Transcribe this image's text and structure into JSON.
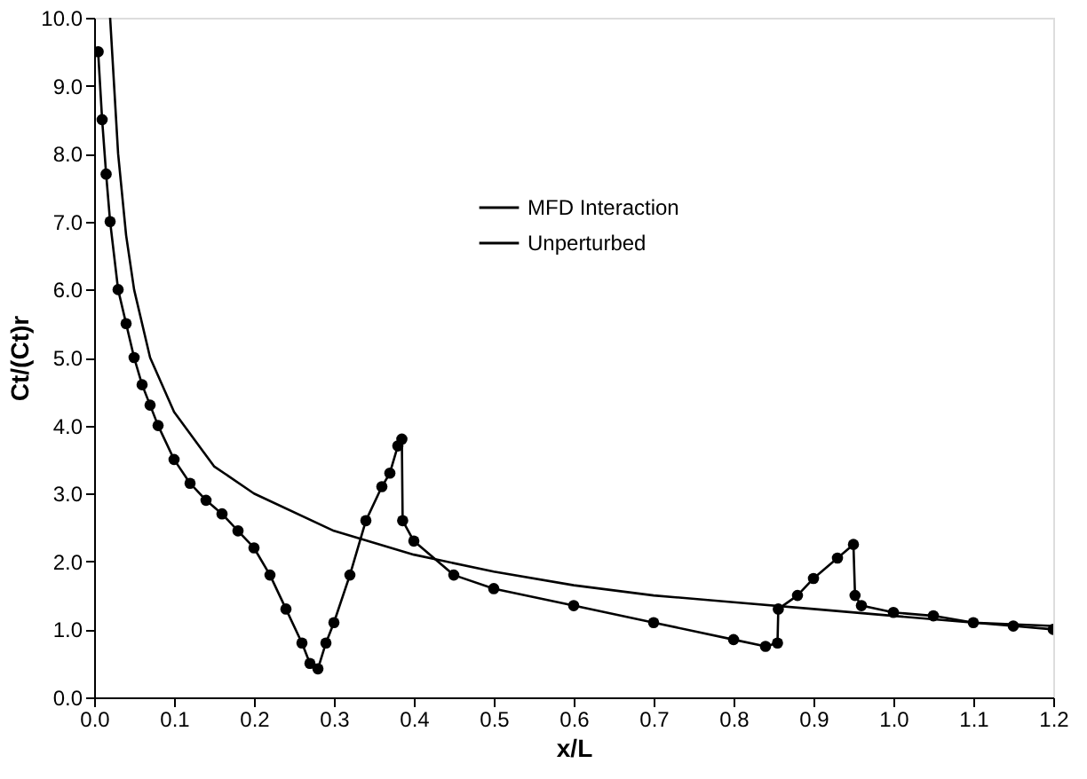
{
  "chart_data": {
    "type": "line",
    "xlabel": "x/L",
    "ylabel": "Ct/(Ct)r",
    "xlim": [
      0,
      1.2
    ],
    "ylim": [
      0,
      10
    ],
    "xticks": [
      {
        "value": 0,
        "label": "0.0"
      },
      {
        "value": 0.1,
        "label": "0.1"
      },
      {
        "value": 0.2,
        "label": "0.2"
      },
      {
        "value": 0.3,
        "label": "0.3"
      },
      {
        "value": 0.4,
        "label": "0.4"
      },
      {
        "value": 0.5,
        "label": "0.5"
      },
      {
        "value": 0.6,
        "label": "0.6"
      },
      {
        "value": 0.7,
        "label": "0.7"
      },
      {
        "value": 0.8,
        "label": "0.8"
      },
      {
        "value": 0.9,
        "label": "0.9"
      },
      {
        "value": 1,
        "label": "1.0"
      },
      {
        "value": 1.1,
        "label": "1.1"
      },
      {
        "value": 1.2,
        "label": "1.2"
      }
    ],
    "yticks": [
      {
        "value": 0,
        "label": "0.0"
      },
      {
        "value": 1,
        "label": "1.0"
      },
      {
        "value": 2,
        "label": "2.0"
      },
      {
        "value": 3,
        "label": "3.0"
      },
      {
        "value": 4,
        "label": "4.0"
      },
      {
        "value": 5,
        "label": "5.0"
      },
      {
        "value": 6,
        "label": "6.0"
      },
      {
        "value": 7,
        "label": "7.0"
      },
      {
        "value": 8,
        "label": "8.0"
      },
      {
        "value": 9,
        "label": "9.0"
      },
      {
        "value": 10,
        "label": "10.0"
      }
    ],
    "grid": false,
    "legend": "top",
    "series": [
      {
        "name": "MFD Interaction",
        "color": "#000000",
        "marker": "circle",
        "x": [
          0.005,
          0.01,
          0.015,
          0.02,
          0.03,
          0.04,
          0.05,
          0.06,
          0.07,
          0.08,
          0.1,
          0.12,
          0.14,
          0.16,
          0.18,
          0.2,
          0.22,
          0.24,
          0.26,
          0.27,
          0.28,
          0.29,
          0.3,
          0.32,
          0.34,
          0.36,
          0.37,
          0.38,
          0.385,
          0.386,
          0.4,
          0.45,
          0.5,
          0.6,
          0.7,
          0.8,
          0.84,
          0.855,
          0.856,
          0.88,
          0.9,
          0.93,
          0.95,
          0.952,
          0.96,
          1.0,
          1.05,
          1.1,
          1.15,
          1.2
        ],
        "values": [
          9.5,
          8.5,
          7.7,
          7.0,
          6.0,
          5.5,
          5.0,
          4.6,
          4.3,
          4.0,
          3.5,
          3.15,
          2.9,
          2.7,
          2.45,
          2.2,
          1.8,
          1.3,
          0.8,
          0.5,
          0.42,
          0.8,
          1.1,
          1.8,
          2.6,
          3.1,
          3.3,
          3.7,
          3.8,
          2.6,
          2.3,
          1.8,
          1.6,
          1.35,
          1.1,
          0.85,
          0.75,
          0.8,
          1.3,
          1.5,
          1.75,
          2.05,
          2.25,
          1.5,
          1.35,
          1.25,
          1.2,
          1.1,
          1.05,
          1.0
        ]
      },
      {
        "name": "Unperturbed",
        "color": "#000000",
        "marker": "none",
        "x": [
          0.02,
          0.03,
          0.04,
          0.05,
          0.07,
          0.1,
          0.15,
          0.2,
          0.3,
          0.4,
          0.5,
          0.6,
          0.7,
          0.8,
          0.9,
          1.0,
          1.1,
          1.2
        ],
        "values": [
          10,
          8.0,
          6.8,
          6.0,
          5.0,
          4.2,
          3.4,
          3.0,
          2.45,
          2.1,
          1.85,
          1.65,
          1.5,
          1.4,
          1.3,
          1.2,
          1.1,
          1.05
        ]
      }
    ]
  }
}
